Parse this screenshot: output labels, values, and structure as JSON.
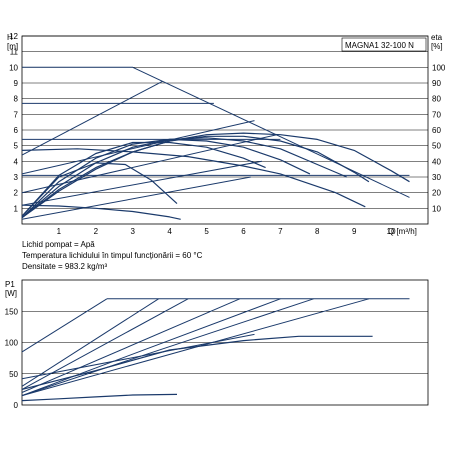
{
  "model_label": "MAGNA1 32-100 N",
  "notes": [
    "Lichid pompat = Apă",
    "Temperatura lichidului în timpul funcționării = 60 °C",
    "Densitate = 983.2 kg/m³"
  ],
  "colors": {
    "curve": "#1b3a6b",
    "grid": "#000000",
    "axis": "#000000"
  },
  "chart_data": [
    {
      "type": "line",
      "title": "",
      "ylabel": "H [m]",
      "y2label": "eta [%]",
      "xlabel": "Q [m³/h]",
      "xlim": [
        0,
        11
      ],
      "ylim": [
        0,
        12
      ],
      "y2lim": [
        0,
        120
      ],
      "x_ticks": [
        "1",
        "2",
        "3",
        "4",
        "5",
        "6",
        "7",
        "8",
        "9",
        "10"
      ],
      "y_ticks": [
        "1",
        "2",
        "3",
        "4",
        "5",
        "6",
        "7",
        "8",
        "9",
        "10",
        "11",
        "12"
      ],
      "y2_ticks": [
        "10",
        "20",
        "30",
        "40",
        "50",
        "60",
        "70",
        "80",
        "90",
        "100"
      ],
      "grid": "horizontal",
      "legend": "none",
      "series": [
        {
          "kind": "envelope",
          "x": [
            0,
            3.0,
            10.5
          ],
          "y": [
            10,
            10,
            1.7
          ]
        },
        {
          "kind": "line",
          "x": [
            0,
            3.8
          ],
          "y": [
            4.4,
            9.1
          ]
        },
        {
          "kind": "line",
          "x": [
            0,
            6.3
          ],
          "y": [
            3.2,
            6.6
          ]
        },
        {
          "kind": "line",
          "x": [
            0,
            6.9
          ],
          "y": [
            2.0,
            5.7
          ]
        },
        {
          "kind": "line",
          "x": [
            0,
            6.5
          ],
          "y": [
            1.2,
            4.0
          ]
        },
        {
          "kind": "line",
          "x": [
            0,
            6.2
          ],
          "y": [
            0.3,
            3.0
          ]
        },
        {
          "kind": "hline",
          "x": [
            0,
            5.2
          ],
          "y": [
            7.7,
            7.7
          ]
        },
        {
          "kind": "hline",
          "x": [
            0,
            7.0
          ],
          "y": [
            5.4,
            5.4
          ]
        },
        {
          "kind": "hline",
          "x": [
            0,
            10.5
          ],
          "y": [
            3.1,
            3.1
          ]
        },
        {
          "kind": "curve",
          "x": [
            0,
            1.5,
            3.0,
            4.5,
            6.0,
            7.0,
            8.5,
            9.3
          ],
          "y": [
            4.7,
            4.8,
            4.6,
            4.3,
            3.7,
            3.2,
            2.0,
            1.1
          ]
        },
        {
          "kind": "curve",
          "x": [
            0,
            1.0,
            2.0,
            3.0,
            4.0,
            4.3
          ],
          "y": [
            1.2,
            1.15,
            1.0,
            0.8,
            0.45,
            0.3
          ]
        },
        {
          "kind": "curve",
          "x": [
            0,
            1.0,
            2.0,
            3.0,
            4.0,
            5.0,
            6.0,
            7.0,
            8.0,
            9.0,
            10.0,
            10.5
          ],
          "y": [
            0.4,
            2.1,
            3.5,
            4.6,
            5.3,
            5.7,
            5.8,
            5.7,
            5.4,
            4.7,
            3.4,
            2.7
          ]
        },
        {
          "kind": "curve",
          "x": [
            0,
            1.0,
            2.0,
            3.0,
            4.0,
            5.0,
            6.0,
            7.0,
            8.0,
            9.0,
            9.4
          ],
          "y": [
            0.4,
            2.2,
            3.6,
            4.6,
            5.3,
            5.6,
            5.6,
            5.3,
            4.6,
            3.3,
            2.7
          ]
        },
        {
          "kind": "curve",
          "x": [
            0,
            1.0,
            2.0,
            3.0,
            4.0,
            5.0,
            6.0,
            7.0,
            8.0,
            8.8
          ],
          "y": [
            0.4,
            2.4,
            3.9,
            4.9,
            5.4,
            5.5,
            5.3,
            4.8,
            3.8,
            3.0
          ]
        },
        {
          "kind": "curve",
          "x": [
            0,
            1.0,
            2.0,
            3.0,
            4.0,
            5.0,
            6.0,
            7.0,
            7.8
          ],
          "y": [
            0.4,
            2.7,
            4.2,
            5.1,
            5.4,
            5.3,
            4.9,
            4.1,
            3.2
          ]
        },
        {
          "kind": "curve",
          "x": [
            0,
            1.0,
            2.0,
            3.0,
            4.0,
            5.0,
            6.0,
            6.6
          ],
          "y": [
            0.5,
            3.1,
            4.5,
            5.2,
            5.2,
            4.9,
            4.2,
            3.6
          ]
        },
        {
          "kind": "curve",
          "x": [
            0,
            1.0,
            2.0,
            2.8,
            3.5,
            4.2
          ],
          "y": [
            0.5,
            3.0,
            3.9,
            3.8,
            2.8,
            1.3
          ]
        }
      ]
    },
    {
      "type": "line",
      "title": "",
      "ylabel": "P1 [W]",
      "xlabel": "",
      "xlim": [
        0,
        11
      ],
      "ylim": [
        0,
        200
      ],
      "y_ticks": [
        "0",
        "50",
        "100",
        "150"
      ],
      "grid": "horizontal",
      "legend": "none",
      "series": [
        {
          "kind": "line",
          "x": [
            0,
            2.3
          ],
          "y": [
            85,
            170
          ]
        },
        {
          "kind": "line",
          "x": [
            2.3,
            10.5
          ],
          "y": [
            170,
            170
          ]
        },
        {
          "kind": "line",
          "x": [
            0,
            3.7
          ],
          "y": [
            30,
            170
          ]
        },
        {
          "kind": "line",
          "x": [
            0,
            4.5
          ],
          "y": [
            25,
            170
          ]
        },
        {
          "kind": "line",
          "x": [
            0,
            5.9
          ],
          "y": [
            20,
            170
          ]
        },
        {
          "kind": "line",
          "x": [
            0,
            7.0
          ],
          "y": [
            15,
            170
          ]
        },
        {
          "kind": "line",
          "x": [
            0,
            7.9
          ],
          "y": [
            15,
            170
          ]
        },
        {
          "kind": "line",
          "x": [
            0,
            9.4
          ],
          "y": [
            15,
            170
          ]
        },
        {
          "kind": "line",
          "x": [
            0,
            6.3
          ],
          "y": [
            42,
            113
          ]
        },
        {
          "kind": "curve",
          "x": [
            0,
            2.0,
            4.0,
            6.0,
            7.5,
            9.5
          ],
          "y": [
            25,
            55,
            88,
            103,
            110,
            110
          ]
        },
        {
          "kind": "curve",
          "x": [
            0,
            1.0,
            2.0,
            3.0,
            4.2
          ],
          "y": [
            7,
            10,
            13,
            16,
            17
          ]
        }
      ]
    }
  ]
}
